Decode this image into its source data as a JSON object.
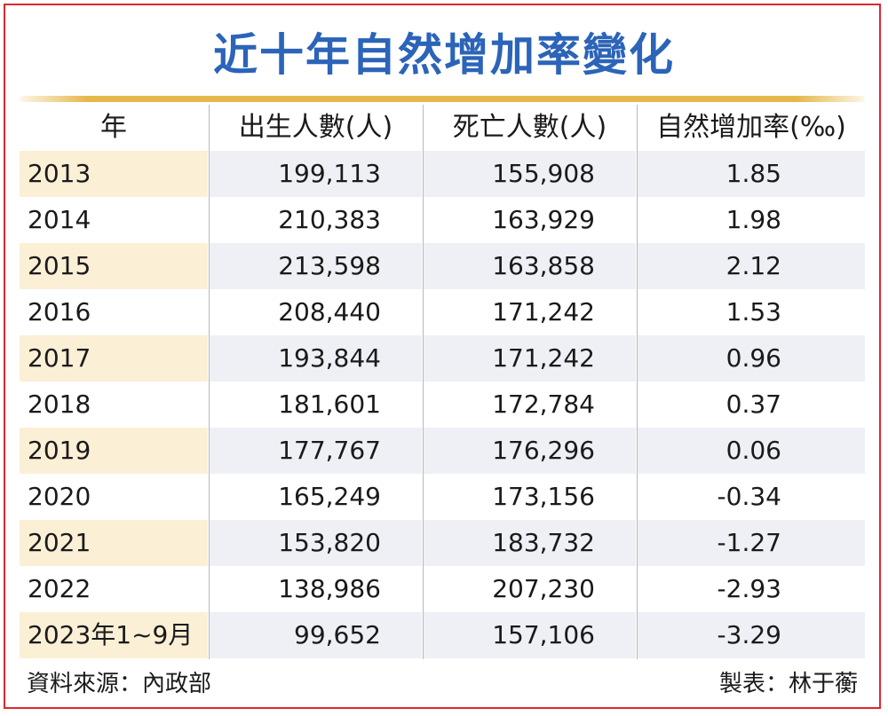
{
  "title": "近十年自然增加率變化",
  "chart_data": {
    "type": "table",
    "title": "近十年自然增加率變化",
    "columns": [
      "年",
      "出生人數(人)",
      "死亡人數(人)",
      "自然增加率(‰)"
    ],
    "rows": [
      [
        "2013",
        "199,113",
        "155,908",
        "1.85"
      ],
      [
        "2014",
        "210,383",
        "163,929",
        "1.98"
      ],
      [
        "2015",
        "213,598",
        "163,858",
        "2.12"
      ],
      [
        "2016",
        "208,440",
        "171,242",
        "1.53"
      ],
      [
        "2017",
        "193,844",
        "171,242",
        "0.96"
      ],
      [
        "2018",
        "181,601",
        "172,784",
        "0.37"
      ],
      [
        "2019",
        "177,767",
        "176,296",
        "0.06"
      ],
      [
        "2020",
        "165,249",
        "173,156",
        "-0.34"
      ],
      [
        "2021",
        "153,820",
        "183,732",
        "-1.27"
      ],
      [
        "2022",
        "138,986",
        "207,230",
        "-2.93"
      ],
      [
        "2023年1~9月",
        "99,652",
        "157,106",
        "-3.29"
      ]
    ]
  },
  "footer": {
    "source": "資料來源：內政部",
    "credit": "製表：林于蘅"
  },
  "colors": {
    "title": "#2b64b8",
    "border": "#e0262e",
    "rule": "#e6b84a",
    "year_stripe": "#fbefd6",
    "value_stripe": "#eef0f5"
  }
}
